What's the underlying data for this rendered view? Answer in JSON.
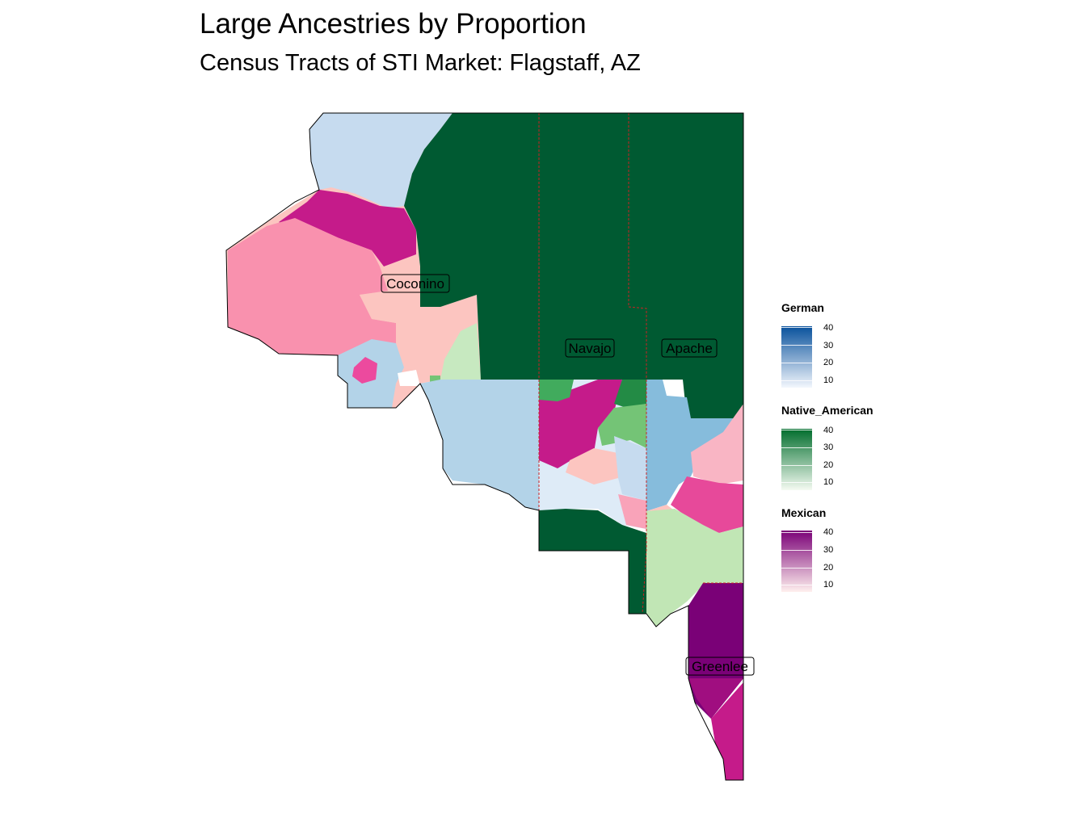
{
  "title": "Large Ancestries by Proportion",
  "subtitle": "Census Tracts of STI Market: Flagstaff, AZ",
  "counties": [
    {
      "name": "Coconino"
    },
    {
      "name": "Navajo"
    },
    {
      "name": "Apache"
    },
    {
      "name": "Greenlee"
    }
  ],
  "legends": [
    {
      "title": "German",
      "ticks": [
        "40",
        "30",
        "20",
        "10"
      ],
      "low_color": "#f3f7fd",
      "high_color": "#08519c"
    },
    {
      "title": "Native_American",
      "ticks": [
        "40",
        "30",
        "20",
        "10"
      ],
      "low_color": "#f5fbf2",
      "high_color": "#006d2c"
    },
    {
      "title": "Mexican",
      "ticks": [
        "40",
        "30",
        "20",
        "10"
      ],
      "low_color": "#fff0ee",
      "high_color": "#7a0177"
    }
  ],
  "colors": {
    "dark_green": "#005a32",
    "county_boundary": "#cc2222",
    "dark_magenta": "#7a0177"
  }
}
